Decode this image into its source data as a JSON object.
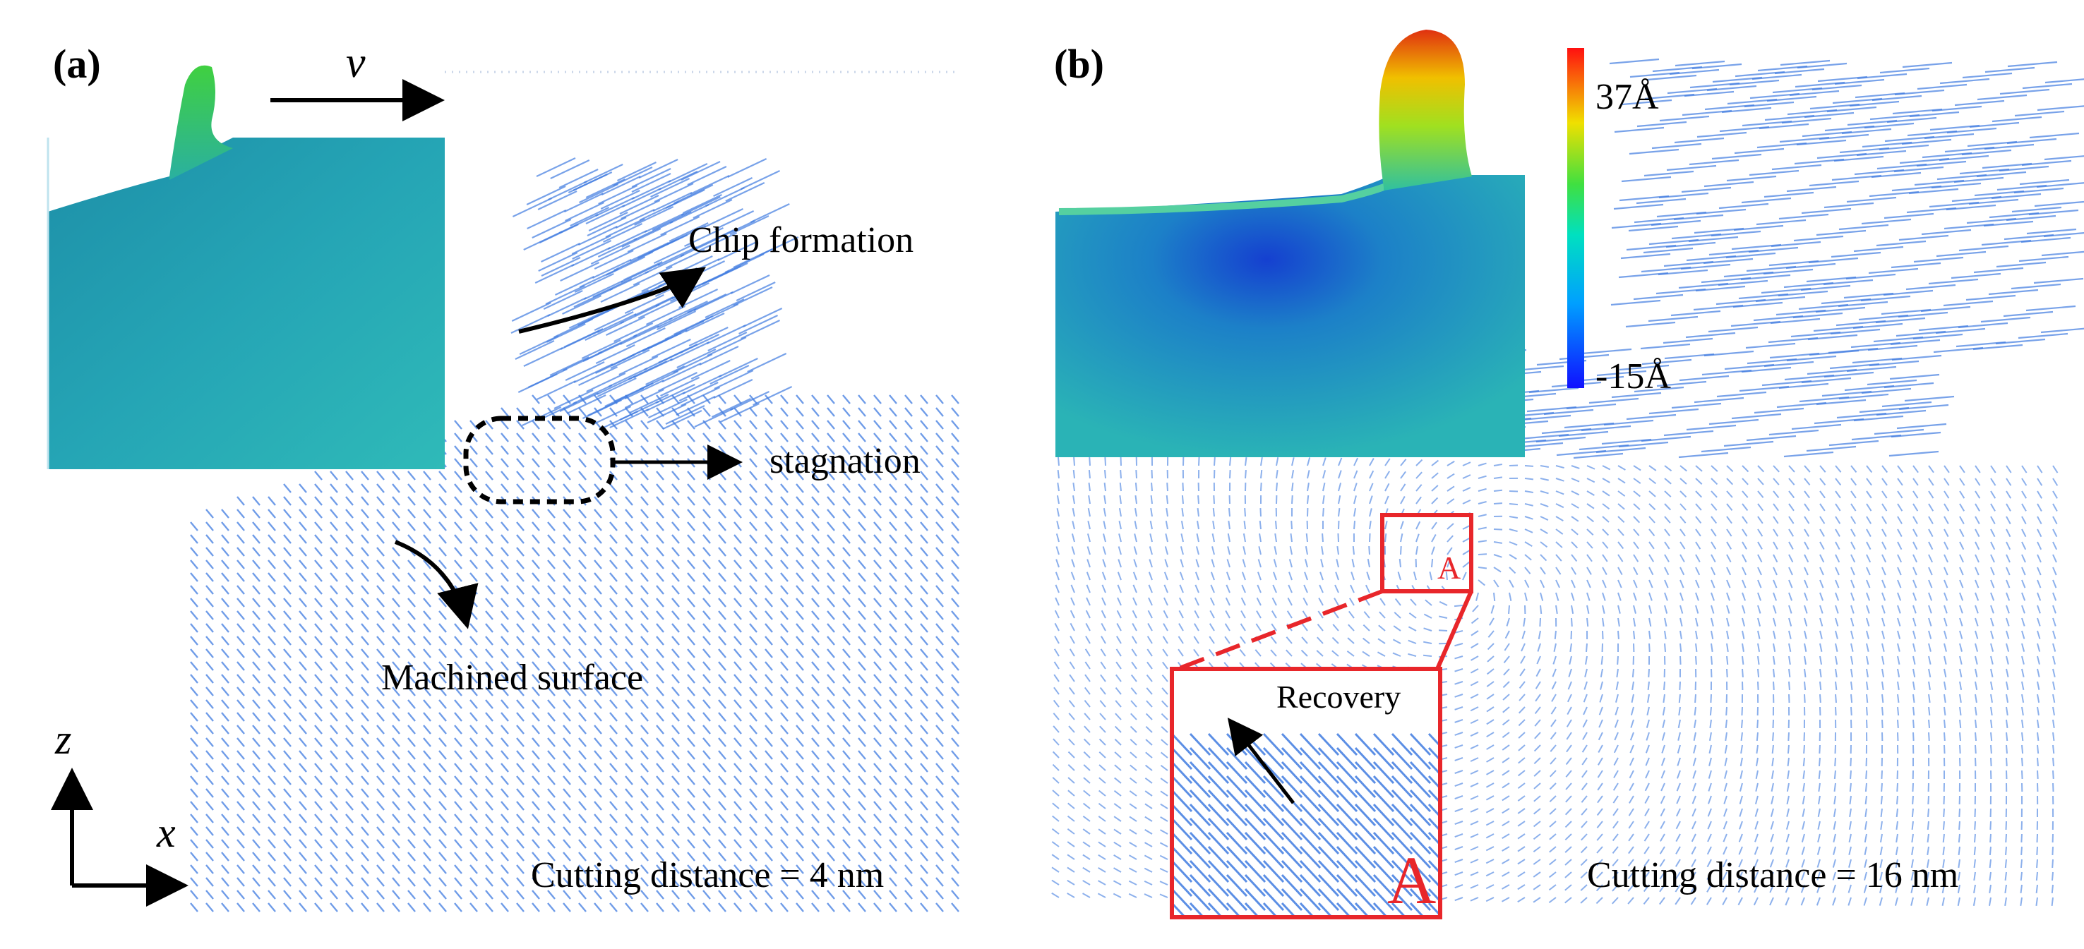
{
  "panel_a": {
    "label": "(a)",
    "velocity_symbol": "v",
    "annotation_chip": "Chip formation",
    "annotation_stagnation": "stagnation",
    "annotation_surface": "Machined surface",
    "axis_z": "z",
    "axis_x": "x",
    "caption": "Cutting distance = 4 nm"
  },
  "panel_b": {
    "label": "(b)",
    "colorbar_max": "37Å",
    "colorbar_min": "-15Å",
    "box_label": "A",
    "inset_label": "A",
    "annotation_recovery": "Recovery",
    "caption": "Cutting distance = 16 nm"
  },
  "colors": {
    "arrow_blue": "#3f7be0",
    "inset_teal": "#2ab0b0",
    "highlight_red": "#e8262a"
  }
}
